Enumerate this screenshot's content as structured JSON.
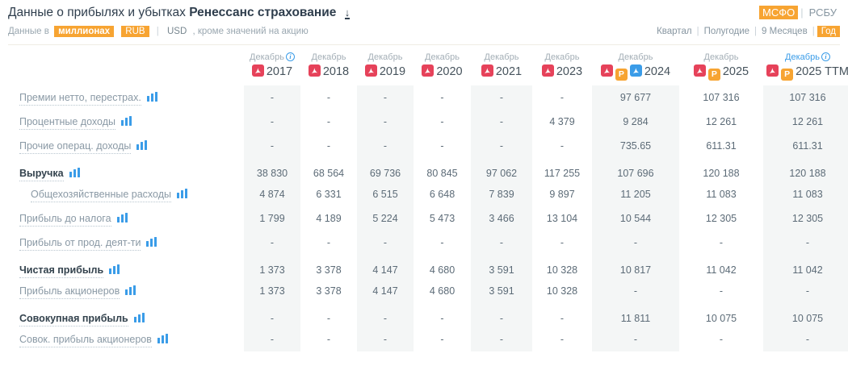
{
  "colors": {
    "accent_orange": "#f7a432",
    "link_blue": "#3a9ce8",
    "pdf_red": "#e6425a",
    "stripe_bg": "#f4f6f6",
    "title_dark": "#2f3e4d"
  },
  "separator": "|",
  "header": {
    "title_prefix": "Данные о прибылях и убытках",
    "company": "Ренессанс страхование",
    "download_icon": "↓",
    "standards": [
      {
        "label": "МСФО",
        "active": true
      },
      {
        "label": "РСБУ",
        "active": false
      }
    ],
    "units_bar": {
      "prefix": "Данные в",
      "million_label": "миллионах",
      "rub_label": "RUB",
      "usd_label": "USD",
      "suffix": ", кроме значений на акцию"
    },
    "periods": [
      {
        "label": "Квартал",
        "active": false
      },
      {
        "label": "Полугодие",
        "active": false
      },
      {
        "label": "9 Месяцев",
        "active": false
      },
      {
        "label": "Год",
        "active": true
      }
    ]
  },
  "table": {
    "columns": [
      {
        "month": "Декабрь",
        "year": "2017",
        "info": true,
        "month_blue": false,
        "icons": [
          "pdf"
        ],
        "striped": true
      },
      {
        "month": "Декабрь",
        "year": "2018",
        "info": false,
        "month_blue": false,
        "icons": [
          "pdf"
        ],
        "striped": false
      },
      {
        "month": "Декабрь",
        "year": "2019",
        "info": false,
        "month_blue": false,
        "icons": [
          "pdf"
        ],
        "striped": true
      },
      {
        "month": "Декабрь",
        "year": "2020",
        "info": false,
        "month_blue": false,
        "icons": [
          "pdf"
        ],
        "striped": false
      },
      {
        "month": "Декабрь",
        "year": "2021",
        "info": false,
        "month_blue": false,
        "icons": [
          "pdf"
        ],
        "striped": true
      },
      {
        "month": "Декабрь",
        "year": "2023",
        "info": false,
        "month_blue": false,
        "icons": [
          "pdf"
        ],
        "striped": false
      },
      {
        "month": "Декабрь",
        "year": "2024",
        "info": false,
        "month_blue": false,
        "icons": [
          "pdf",
          "p",
          "doc"
        ],
        "striped": true
      },
      {
        "month": "Декабрь",
        "year": "2025",
        "info": false,
        "month_blue": false,
        "icons": [
          "pdf",
          "p"
        ],
        "striped": false
      },
      {
        "month": "Декабрь",
        "year": "2025 TTM",
        "info": true,
        "month_blue": true,
        "icons": [
          "pdf",
          "p"
        ],
        "striped": true
      }
    ],
    "rows": [
      {
        "label": "Премии нетто, перестрах.",
        "bold": false,
        "indent": false,
        "values": [
          "-",
          "-",
          "-",
          "-",
          "-",
          "-",
          "97 677",
          "107 316",
          "107 316"
        ]
      },
      {
        "label": "Процентные доходы",
        "bold": false,
        "indent": false,
        "values": [
          "-",
          "-",
          "-",
          "-",
          "-",
          "4 379",
          "9 284",
          "12 261",
          "12 261"
        ]
      },
      {
        "label": "Прочие операц. доходы",
        "bold": false,
        "indent": false,
        "values": [
          "-",
          "-",
          "-",
          "-",
          "-",
          "-",
          "735.65",
          "611.31",
          "611.31"
        ]
      },
      {
        "label": "Выручка",
        "bold": true,
        "indent": false,
        "values": [
          "38 830",
          "68 564",
          "69 736",
          "80 845",
          "97 062",
          "117 255",
          "107 696",
          "120 188",
          "120 188"
        ]
      },
      {
        "label": "Общехозяйственные расходы",
        "bold": false,
        "indent": true,
        "values": [
          "4 874",
          "6 331",
          "6 515",
          "6 648",
          "7 839",
          "9 897",
          "11 205",
          "11 083",
          "11 083"
        ]
      },
      {
        "label": "Прибыль до налога",
        "bold": false,
        "indent": false,
        "values": [
          "1 799",
          "4 189",
          "5 224",
          "5 473",
          "3 466",
          "13 104",
          "10 544",
          "12 305",
          "12 305"
        ]
      },
      {
        "label": "Прибыль от прод. деят-ти",
        "bold": false,
        "indent": false,
        "values": [
          "-",
          "-",
          "-",
          "-",
          "-",
          "-",
          "-",
          "-",
          "-"
        ]
      },
      {
        "label": "Чистая прибыль",
        "bold": true,
        "indent": false,
        "values": [
          "1 373",
          "3 378",
          "4 147",
          "4 680",
          "3 591",
          "10 328",
          "10 817",
          "11 042",
          "11 042"
        ]
      },
      {
        "label": "Прибыль акционеров",
        "bold": false,
        "indent": false,
        "values": [
          "1 373",
          "3 378",
          "4 147",
          "4 680",
          "3 591",
          "10 328",
          "-",
          "-",
          "-"
        ]
      },
      {
        "label": "Совокупная прибыль",
        "bold": true,
        "indent": false,
        "values": [
          "-",
          "-",
          "-",
          "-",
          "-",
          "-",
          "11 811",
          "10 075",
          "10 075"
        ]
      },
      {
        "label": "Совок. прибыль акционеров",
        "bold": false,
        "indent": false,
        "values": [
          "-",
          "-",
          "-",
          "-",
          "-",
          "-",
          "-",
          "-",
          "-"
        ]
      }
    ]
  }
}
